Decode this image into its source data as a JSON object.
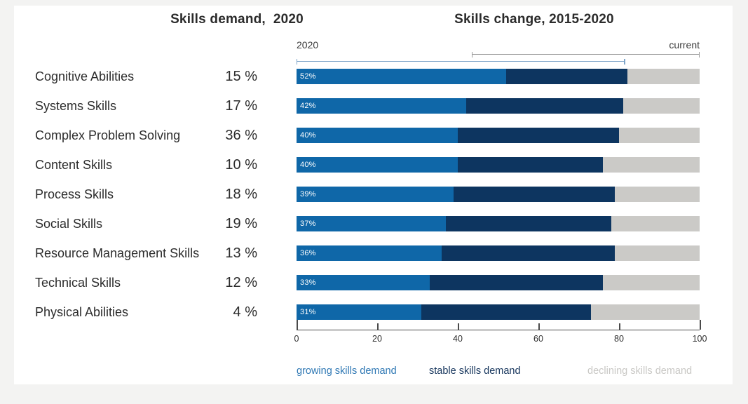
{
  "headers": {
    "left": "Skills demand,  2020",
    "right": "Skills change, 2015-2020"
  },
  "annotations": {
    "left_bracket_label": "2020",
    "right_bracket_label": "current"
  },
  "legend": [
    {
      "name": "growing",
      "label": "growing skills demand",
      "color": "#2f78b4"
    },
    {
      "name": "stable",
      "label": "stable skills demand",
      "color": "#17365d"
    },
    {
      "name": "declining",
      "label": "declining skills demand",
      "color": "#c9c8c5"
    }
  ],
  "colors": {
    "growing_segment": "#0f67a8",
    "stable_segment": "#0d3560",
    "declining_segment": "#cbcac7",
    "bar_value_text": "#ffffff",
    "header_text": "#2b2b2b",
    "bracket_blue": "#7fa5c9",
    "bracket_gray": "#9b9b9b"
  },
  "chart_data": {
    "type": "bar",
    "orientation": "horizontal-stacked",
    "title": "Skills demand, 2020 / Skills change, 2015-2020",
    "categories": [
      "Cognitive Abilities",
      "Systems Skills",
      "Complex Problem Solving",
      "Content Skills",
      "Process Skills",
      "Social Skills",
      "Resource Management Skills",
      "Technical Skills",
      "Physical Abilities"
    ],
    "skills_demand_2020_pct_labels": [
      "15 %",
      "17 %",
      "36 %",
      "10 %",
      "18 %",
      "19 %",
      "13 %",
      "12 %",
      "4 %"
    ],
    "skills_demand_2020_pct": [
      15,
      17,
      36,
      10,
      18,
      19,
      13,
      12,
      4
    ],
    "series": [
      {
        "name": "growing skills demand",
        "values": [
          52,
          42,
          40,
          40,
          39,
          37,
          36,
          33,
          31
        ]
      },
      {
        "name": "stable skills demand",
        "values": [
          30,
          39,
          40,
          36,
          40,
          41,
          43,
          43,
          42
        ]
      },
      {
        "name": "declining skills demand",
        "values": [
          18,
          19,
          20,
          24,
          21,
          22,
          21,
          24,
          27
        ]
      }
    ],
    "bar_value_labels": [
      "52%",
      "42%",
      "40%",
      "40%",
      "39%",
      "37%",
      "36%",
      "33%",
      "31%"
    ],
    "xlim": [
      0,
      100
    ],
    "axis_ticks": [
      0,
      20,
      40,
      60,
      80,
      100
    ],
    "grid": false,
    "legend_position": "bottom",
    "brackets": {
      "blue": {
        "label": "2020",
        "from": 0,
        "to": 81.5
      },
      "gray": {
        "label": "current",
        "from": 43.5,
        "to": 100
      }
    }
  }
}
